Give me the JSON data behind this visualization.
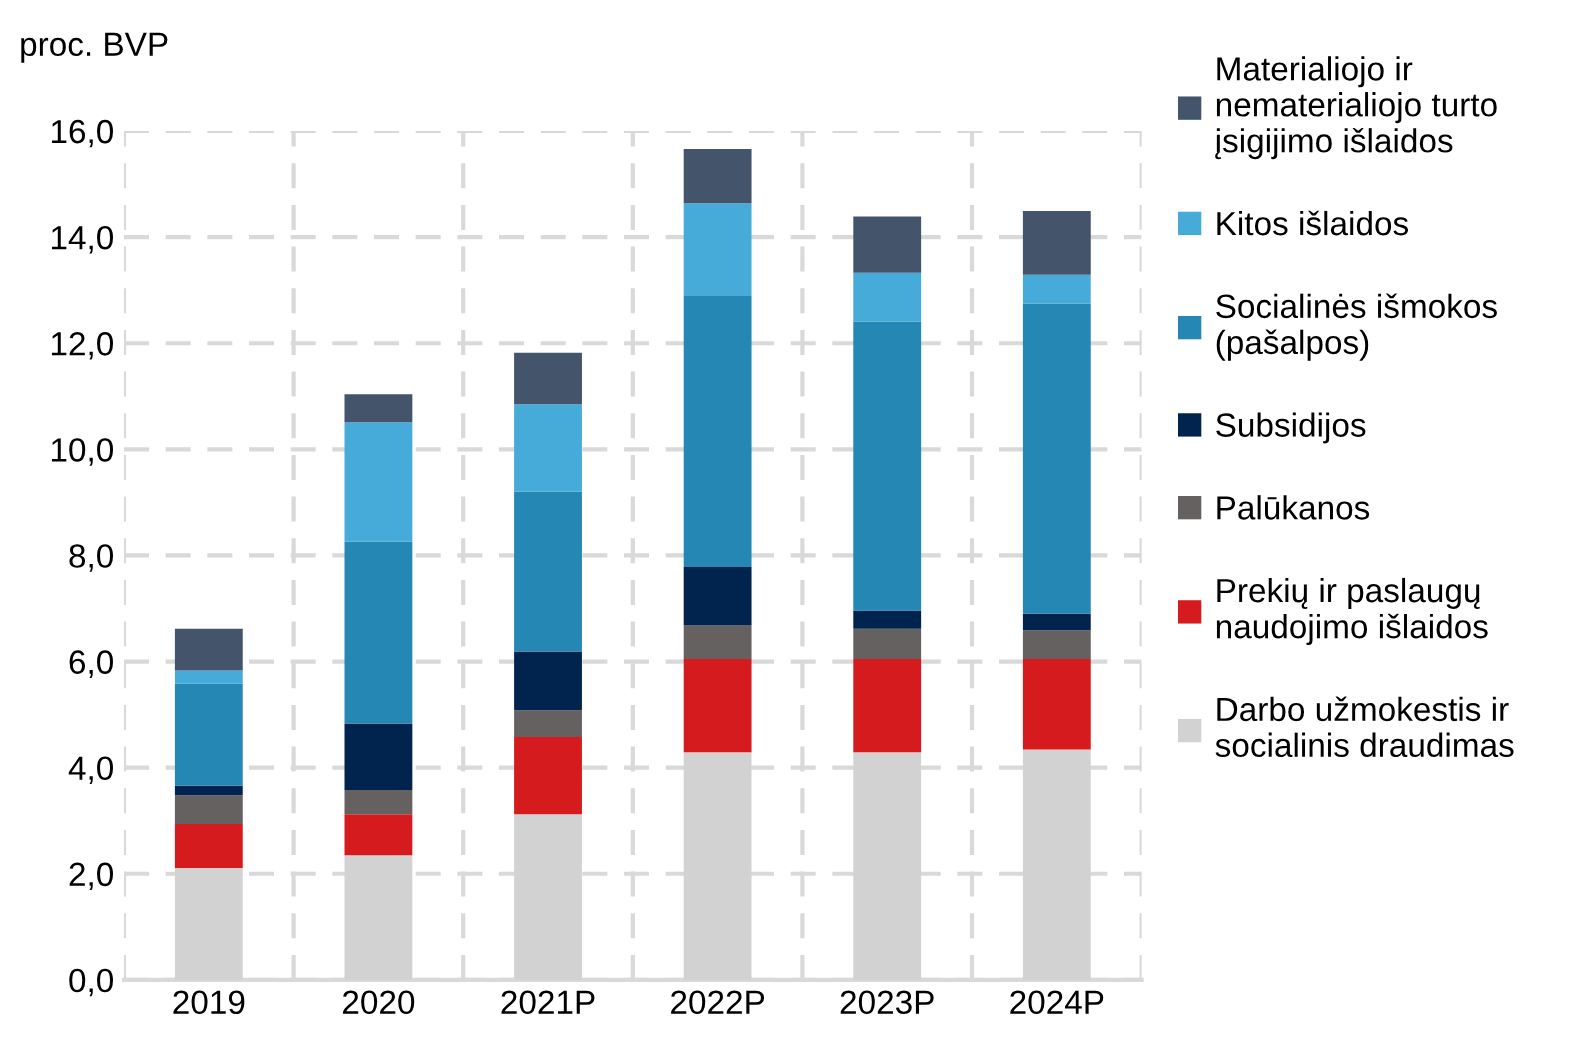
{
  "chart_data": {
    "type": "bar",
    "stacked": true,
    "ylabel": "proc. BVP",
    "categories": [
      "2019",
      "2020",
      "2021P",
      "2022P",
      "2023P",
      "2024P"
    ],
    "series": [
      {
        "name": "Darbo užmokestis ir\nsocialinis draudimas",
        "color": "#d2d2d2",
        "values": [
          2.11,
          2.35,
          3.12,
          4.29,
          4.29,
          4.34
        ]
      },
      {
        "name": "Prekių ir paslaugų\nnaudojimo išlaidos",
        "color": "#d61b1f",
        "values": [
          0.83,
          0.77,
          1.46,
          1.76,
          1.76,
          1.71
        ]
      },
      {
        "name": "Palūkanos",
        "color": "#656161",
        "values": [
          0.54,
          0.46,
          0.5,
          0.63,
          0.57,
          0.54
        ]
      },
      {
        "name": "Subsidijos",
        "color": "#00244d",
        "values": [
          0.18,
          1.25,
          1.11,
          1.1,
          0.34,
          0.31
        ]
      },
      {
        "name": "Socialinės išmokos\n(pašalpos)",
        "color": "#2587b3",
        "values": [
          1.92,
          3.43,
          3.01,
          5.11,
          5.45,
          5.85
        ]
      },
      {
        "name": "Kitos išlaidos",
        "color": "#47abd9",
        "values": [
          0.25,
          2.25,
          1.65,
          1.75,
          0.92,
          0.54
        ]
      },
      {
        "name": "Materialiojo ir\nnematerialiojo turto\nįsigijimo išlaidos",
        "color": "#44546a",
        "values": [
          0.79,
          0.53,
          0.97,
          1.02,
          1.06,
          1.2
        ]
      }
    ],
    "ylim": [
      0,
      16
    ],
    "yticks": [
      {
        "value": 0,
        "label": "0,0"
      },
      {
        "value": 2,
        "label": "2,0"
      },
      {
        "value": 4,
        "label": "4,0"
      },
      {
        "value": 6,
        "label": "6,0"
      },
      {
        "value": 8,
        "label": "8,0"
      },
      {
        "value": 10,
        "label": "10,0"
      },
      {
        "value": 12,
        "label": "12,0"
      },
      {
        "value": 14,
        "label": "14,0"
      },
      {
        "value": 16,
        "label": "16,0"
      }
    ],
    "grid": true,
    "legend": "right"
  }
}
